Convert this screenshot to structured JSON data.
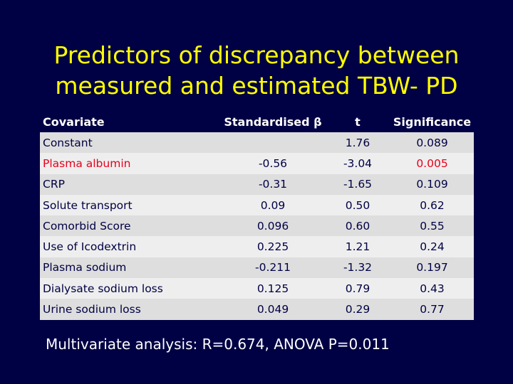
{
  "title": {
    "line1": "Predictors of discrepancy between",
    "line2": "measured and estimated TBW- PD"
  },
  "table": {
    "headers": [
      "Covariate",
      "Standardised β",
      "t",
      "Significance"
    ],
    "rows": [
      {
        "covariate": "Constant",
        "beta": "",
        "t": "1.76",
        "sig": "0.089"
      },
      {
        "covariate": "Plasma albumin",
        "beta": "-0.56",
        "t": "-3.04",
        "sig": "0.005"
      },
      {
        "covariate": "CRP",
        "beta": "-0.31",
        "t": "-1.65",
        "sig": "0.109"
      },
      {
        "covariate": "Solute transport",
        "beta": "0.09",
        "t": "0.50",
        "sig": "0.62"
      },
      {
        "covariate": "Comorbid Score",
        "beta": "0.096",
        "t": "0.60",
        "sig": "0.55"
      },
      {
        "covariate": "Use of Icodextrin",
        "beta": "0.225",
        "t": "1.21",
        "sig": "0.24"
      },
      {
        "covariate": "Plasma sodium",
        "beta": "-0.211",
        "t": "-1.32",
        "sig": "0.197"
      },
      {
        "covariate": "Dialysate sodium loss",
        "beta": "0.125",
        "t": "0.79",
        "sig": "0.43"
      },
      {
        "covariate": "Urine sodium loss",
        "beta": "0.049",
        "t": "0.29",
        "sig": "0.77"
      }
    ]
  },
  "footer": "Multivariate analysis: R=0.674, ANOVA P=0.011",
  "colors": {
    "background": "#000044",
    "title": "#FFFF00",
    "highlight": "#E8001C"
  }
}
